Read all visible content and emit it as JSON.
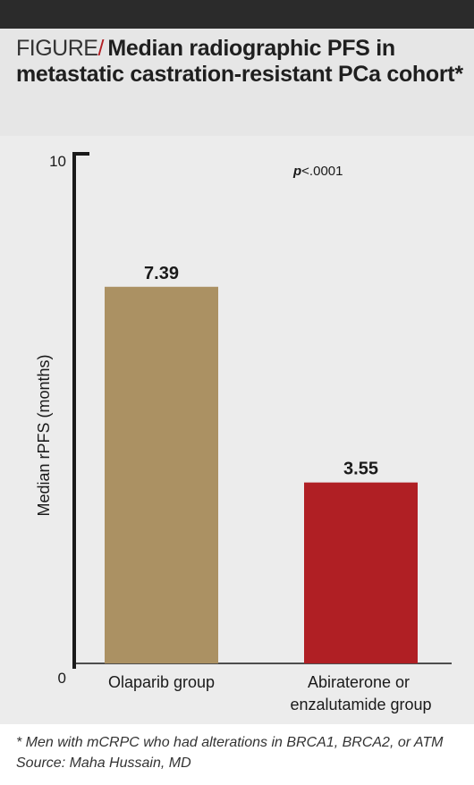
{
  "header": {
    "prefix": "FIGURE",
    "slash": "/",
    "title": "Median radiographic PFS in metastatic castration-resistant PCa cohort*"
  },
  "chart_data": {
    "type": "bar",
    "categories": [
      "Olaparib group",
      "Abiraterone or enzalutamide group"
    ],
    "category_lines": [
      [
        "Olaparib group"
      ],
      [
        "Abiraterone or",
        "enzalutamide group"
      ]
    ],
    "values": [
      7.39,
      3.55
    ],
    "value_labels": [
      "7.39",
      "3.55"
    ],
    "colors": [
      "#ab9163",
      "#b01f24"
    ],
    "ylabel": "Median rPFS (months)",
    "ylim": [
      0,
      10
    ],
    "yticks": [
      "0",
      "10"
    ],
    "annotation": {
      "prefix": "p",
      "suffix": "<.0001"
    },
    "grid": false
  },
  "footnote": {
    "line1": "* Men with mCRPC who had alterations in BRCA1, BRCA2, or ATM",
    "line2": "Source: Maha Hussain, MD"
  }
}
